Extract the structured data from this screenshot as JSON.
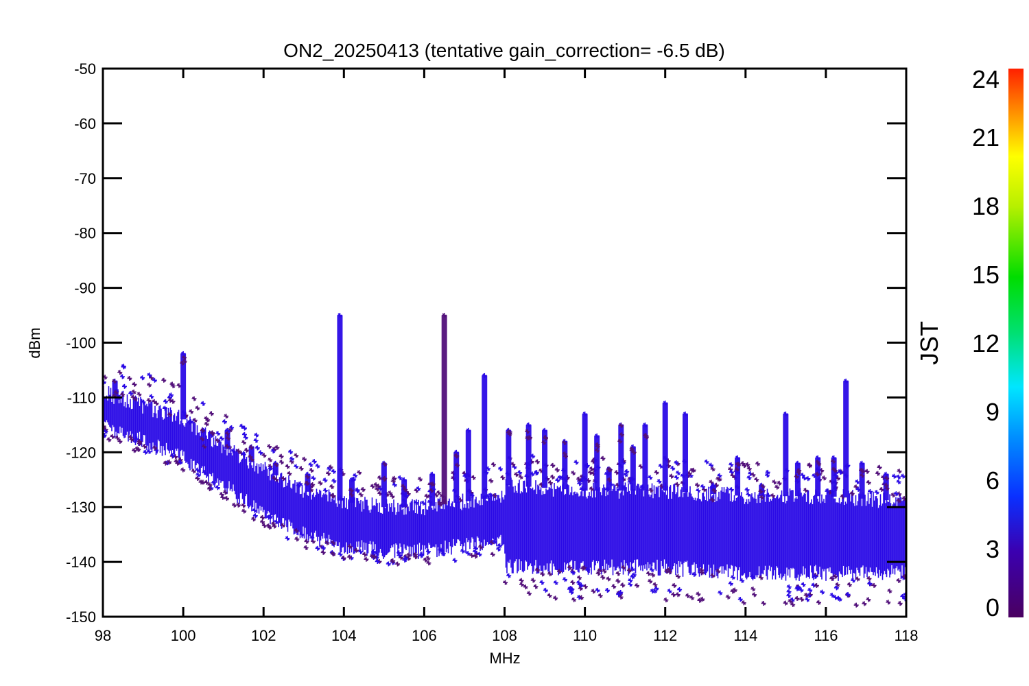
{
  "chart_data": {
    "type": "scatter",
    "title": "ON2_20250413 (tentative gain_correction= -6.5 dB)",
    "xlabel": "MHz",
    "ylabel": "dBm",
    "xlim": [
      98,
      118
    ],
    "ylim": [
      -150,
      -50
    ],
    "xticks": [
      "98",
      "100",
      "102",
      "104",
      "106",
      "108",
      "110",
      "112",
      "114",
      "116",
      "118"
    ],
    "yticks": [
      "-50",
      "-60",
      "-70",
      "-80",
      "-90",
      "-100",
      "-110",
      "-120",
      "-130",
      "-140",
      "-150"
    ],
    "grid": false,
    "marker": "asterisk",
    "colorbar": {
      "label": "JST",
      "range": [
        0,
        24
      ],
      "ticks": [
        "0",
        "3",
        "6",
        "9",
        "12",
        "15",
        "18",
        "21",
        "24"
      ],
      "colormap": "rainbow"
    },
    "colors": {
      "primary_points": "#2a0ae6",
      "secondary_points": "#52107a"
    },
    "baseline_noise_floor": [
      {
        "x": 98.0,
        "low": -115,
        "high": -109
      },
      {
        "x": 100.0,
        "low": -121,
        "high": -114
      },
      {
        "x": 101.0,
        "low": -126,
        "high": -119
      },
      {
        "x": 102.0,
        "low": -131,
        "high": -123
      },
      {
        "x": 103.0,
        "low": -135,
        "high": -127
      },
      {
        "x": 104.0,
        "low": -137,
        "high": -129
      },
      {
        "x": 105.0,
        "low": -138,
        "high": -130
      },
      {
        "x": 106.0,
        "low": -138,
        "high": -130
      },
      {
        "x": 107.0,
        "low": -137,
        "high": -129
      },
      {
        "x": 107.95,
        "low": -136,
        "high": -128
      },
      {
        "x": 108.05,
        "low": -141,
        "high": -126
      },
      {
        "x": 110.0,
        "low": -141,
        "high": -127
      },
      {
        "x": 112.0,
        "low": -141,
        "high": -127
      },
      {
        "x": 114.0,
        "low": -142,
        "high": -128
      },
      {
        "x": 116.0,
        "low": -142,
        "high": -128
      },
      {
        "x": 118.0,
        "low": -142,
        "high": -129
      }
    ],
    "peaks": [
      {
        "x": 98.3,
        "top": -107
      },
      {
        "x": 100.0,
        "top": -102
      },
      {
        "x": 100.5,
        "top": -116
      },
      {
        "x": 101.1,
        "top": -116
      },
      {
        "x": 101.7,
        "top": -119
      },
      {
        "x": 102.3,
        "top": -122
      },
      {
        "x": 103.1,
        "top": -124
      },
      {
        "x": 103.9,
        "top": -95
      },
      {
        "x": 104.2,
        "top": -125
      },
      {
        "x": 105.0,
        "top": -122
      },
      {
        "x": 105.5,
        "top": -125
      },
      {
        "x": 106.2,
        "top": -124
      },
      {
        "x": 106.5,
        "top": -95
      },
      {
        "x": 106.8,
        "top": -120
      },
      {
        "x": 107.1,
        "top": -116
      },
      {
        "x": 107.5,
        "top": -106
      },
      {
        "x": 108.1,
        "top": -116
      },
      {
        "x": 108.6,
        "top": -115
      },
      {
        "x": 109.0,
        "top": -116
      },
      {
        "x": 109.5,
        "top": -118
      },
      {
        "x": 110.0,
        "top": -113
      },
      {
        "x": 110.3,
        "top": -117
      },
      {
        "x": 110.6,
        "top": -123
      },
      {
        "x": 110.9,
        "top": -115
      },
      {
        "x": 111.2,
        "top": -119
      },
      {
        "x": 111.5,
        "top": -115
      },
      {
        "x": 112.0,
        "top": -111
      },
      {
        "x": 112.5,
        "top": -113
      },
      {
        "x": 113.2,
        "top": -126
      },
      {
        "x": 113.8,
        "top": -121
      },
      {
        "x": 114.4,
        "top": -126
      },
      {
        "x": 115.0,
        "top": -113
      },
      {
        "x": 115.3,
        "top": -122
      },
      {
        "x": 115.8,
        "top": -121
      },
      {
        "x": 116.2,
        "top": -121
      },
      {
        "x": 116.5,
        "top": -107
      },
      {
        "x": 116.9,
        "top": -122
      },
      {
        "x": 117.5,
        "top": -124
      }
    ]
  }
}
